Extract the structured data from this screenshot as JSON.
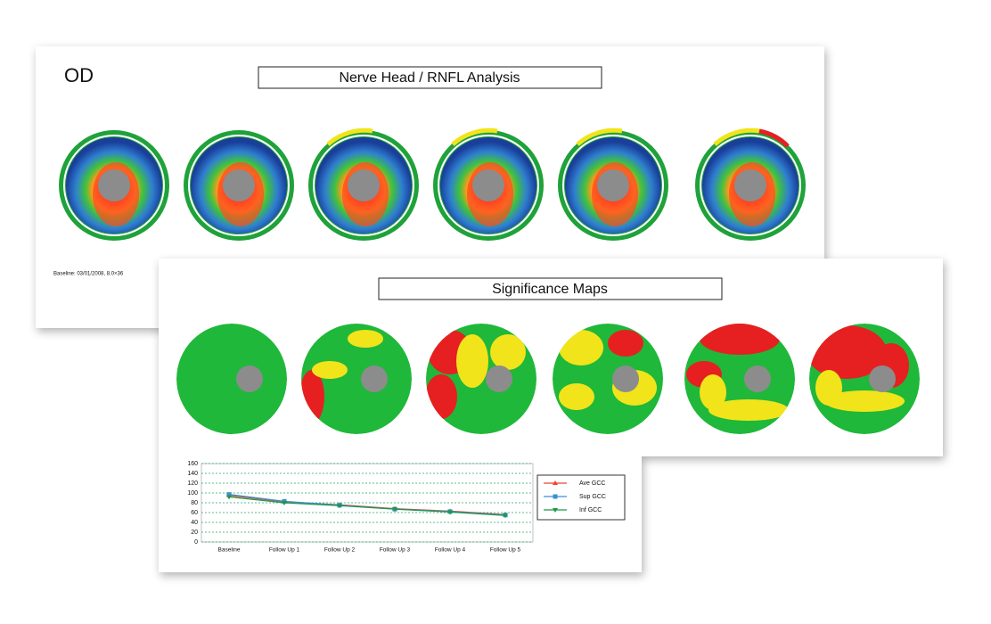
{
  "report": {
    "eye": "OD",
    "title": "Nerve Head / RNFL Analysis",
    "baseline_note": "Baseline: 03/01/2008, 8.0×36"
  },
  "significance": {
    "title": "Significance Maps"
  },
  "chart_data": {
    "type": "line",
    "categories": [
      "Baseline",
      "Follow Up 1",
      "Follow Up 2",
      "Follow Up 3",
      "Follow Up 4",
      "Follow Up 5"
    ],
    "series": [
      {
        "name": "Ave GCC",
        "color": "#e8472e",
        "values": [
          95,
          82,
          76,
          68,
          63,
          56
        ]
      },
      {
        "name": "Sup GCC",
        "color": "#3a8fd6",
        "values": [
          97,
          83,
          75,
          67,
          62,
          55
        ]
      },
      {
        "name": "Inf GCC",
        "color": "#1a9a4a",
        "values": [
          92,
          80,
          74,
          67,
          61,
          54
        ]
      }
    ],
    "ylim": [
      0,
      160
    ],
    "yticks": [
      0,
      20,
      40,
      60,
      80,
      100,
      120,
      140,
      160
    ],
    "grid": true
  }
}
